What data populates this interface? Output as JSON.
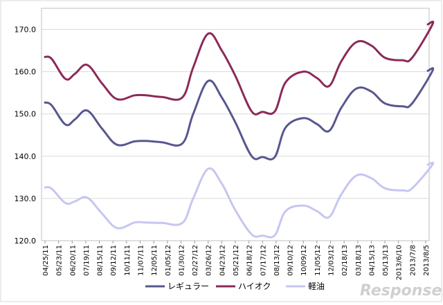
{
  "chart_data": {
    "type": "line",
    "ylim": [
      120,
      175
    ],
    "yticks": [
      "120.0",
      "130.0",
      "140.0",
      "150.0",
      "160.0",
      "170.0"
    ],
    "grid": true,
    "legend_position": "bottom",
    "categories": [
      "04/25/11",
      "05/23/11",
      "06/20/11",
      "07/19/11",
      "08/15/11",
      "09/12/11",
      "10/11/11",
      "11/07/11",
      "12/05/11",
      "01/05/12",
      "01/30/12",
      "02/27/12",
      "03/26/12",
      "04/23/12",
      "05/21/12",
      "06/18/12",
      "07/17/12",
      "08/13/12",
      "09/10/12",
      "10/09/12",
      "11/05/12",
      "12/03/12",
      "02/18/13",
      "03/18/13",
      "04/15/13",
      "05/13/13",
      "2013/6/10",
      "2013/7/8",
      "2013/8/5"
    ],
    "series": [
      {
        "name": "レギュラー",
        "color": "#57578f",
        "values": [
          152.7,
          152.0,
          147.5,
          148.7,
          150.8,
          146.5,
          142.7,
          143.5,
          143.6,
          143.3,
          143.0,
          150.0,
          157.8,
          153.9,
          148.0,
          140.0,
          139.8,
          139.8,
          146.8,
          149.0,
          147.6,
          146.0,
          151.5,
          156.0,
          155.3,
          152.5,
          151.8,
          152.5,
          160.2
        ],
        "x_index": [
          0,
          0.5,
          1.5,
          2.2,
          3.1,
          4.2,
          5.3,
          6.6,
          7.4,
          8.6,
          10.1,
          10.9,
          12.0,
          13.0,
          14.0,
          15.2,
          16.0,
          16.9,
          17.7,
          19.0,
          20.0,
          20.9,
          21.8,
          22.9,
          24.0,
          25.0,
          26.3,
          27.0,
          28.5
        ]
      },
      {
        "name": "ハイオク",
        "color": "#8b2a5a",
        "values": [
          163.5,
          163.0,
          158.3,
          159.5,
          161.6,
          157.2,
          153.5,
          154.4,
          154.4,
          154.0,
          153.9,
          161.0,
          169.0,
          165.0,
          159.0,
          150.6,
          150.5,
          150.6,
          157.5,
          160.0,
          158.5,
          156.6,
          162.5,
          167.0,
          166.2,
          163.3,
          162.7,
          163.3,
          171.2
        ],
        "x_index": [
          0,
          0.5,
          1.5,
          2.2,
          3.1,
          4.2,
          5.3,
          6.6,
          7.4,
          8.6,
          10.1,
          10.9,
          12.0,
          13.0,
          14.0,
          15.2,
          16.0,
          16.9,
          17.7,
          19.0,
          20.0,
          20.9,
          21.8,
          22.9,
          24.0,
          25.0,
          26.3,
          27.0,
          28.5
        ]
      },
      {
        "name": "軽油",
        "color": "#c6c6f2",
        "values": [
          132.6,
          132.3,
          128.9,
          129.3,
          130.2,
          126.4,
          123.0,
          124.3,
          124.3,
          124.2,
          124.2,
          130.0,
          137.0,
          133.5,
          127.2,
          121.5,
          121.2,
          121.3,
          127.0,
          128.3,
          127.0,
          125.6,
          131.0,
          135.4,
          134.8,
          132.4,
          131.9,
          132.4,
          138.0
        ],
        "x_index": [
          0,
          0.5,
          1.5,
          2.2,
          3.1,
          4.2,
          5.3,
          6.6,
          7.4,
          8.6,
          10.1,
          10.9,
          12.0,
          13.0,
          14.0,
          15.2,
          16.0,
          16.9,
          17.7,
          19.0,
          20.0,
          20.9,
          21.8,
          22.9,
          24.0,
          25.0,
          26.3,
          27.0,
          28.5
        ]
      }
    ]
  },
  "watermark": "Response."
}
